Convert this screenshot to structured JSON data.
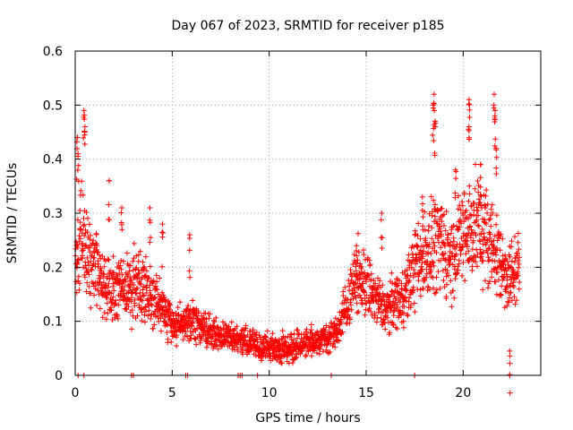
{
  "chart_data": {
    "type": "scatter",
    "title": "Day 067 of 2023, SRMTID for receiver p185",
    "xlabel": "GPS time / hours",
    "ylabel": "SRMTID / TECUs",
    "xlim": [
      0,
      24
    ],
    "ylim": [
      0,
      0.6
    ],
    "xticks": [
      0,
      5,
      10,
      15,
      20
    ],
    "xtick_labels": [
      "0",
      "5",
      "10",
      "15",
      "20"
    ],
    "yticks": [
      0,
      0.1,
      0.2,
      0.3,
      0.4,
      0.5,
      0.6
    ],
    "ytick_labels": [
      "0",
      "0.1",
      "0.2",
      "0.3",
      "0.4",
      "0.5",
      "0.6"
    ],
    "grid": true,
    "marker": "+",
    "color": "#ff0000",
    "series": [
      {
        "name": "SRMTID",
        "trend": [
          [
            0.0,
            0.2
          ],
          [
            0.3,
            0.27
          ],
          [
            0.6,
            0.22
          ],
          [
            1.0,
            0.2
          ],
          [
            1.5,
            0.17
          ],
          [
            2.0,
            0.15
          ],
          [
            2.5,
            0.16
          ],
          [
            3.0,
            0.17
          ],
          [
            3.5,
            0.16
          ],
          [
            4.0,
            0.15
          ],
          [
            4.5,
            0.12
          ],
          [
            5.0,
            0.1
          ],
          [
            5.5,
            0.09
          ],
          [
            6.0,
            0.1
          ],
          [
            6.5,
            0.09
          ],
          [
            7.0,
            0.08
          ],
          [
            7.5,
            0.075
          ],
          [
            8.0,
            0.07
          ],
          [
            8.5,
            0.065
          ],
          [
            9.0,
            0.06
          ],
          [
            9.5,
            0.055
          ],
          [
            10.0,
            0.05
          ],
          [
            10.5,
            0.05
          ],
          [
            11.0,
            0.05
          ],
          [
            11.5,
            0.055
          ],
          [
            12.0,
            0.06
          ],
          [
            12.5,
            0.065
          ],
          [
            13.0,
            0.07
          ],
          [
            13.5,
            0.08
          ],
          [
            14.0,
            0.13
          ],
          [
            14.5,
            0.18
          ],
          [
            15.0,
            0.17
          ],
          [
            15.5,
            0.14
          ],
          [
            16.0,
            0.12
          ],
          [
            16.5,
            0.14
          ],
          [
            17.0,
            0.15
          ],
          [
            17.5,
            0.2
          ],
          [
            18.0,
            0.22
          ],
          [
            18.5,
            0.25
          ],
          [
            19.0,
            0.23
          ],
          [
            19.5,
            0.22
          ],
          [
            20.0,
            0.26
          ],
          [
            20.5,
            0.28
          ],
          [
            21.0,
            0.27
          ],
          [
            21.5,
            0.24
          ],
          [
            22.0,
            0.2
          ],
          [
            22.5,
            0.18
          ],
          [
            22.9,
            0.2
          ]
        ],
        "peaks": [
          [
            0.1,
            0.44
          ],
          [
            0.15,
            0.41
          ],
          [
            0.45,
            0.49
          ],
          [
            0.5,
            0.46
          ],
          [
            1.75,
            0.36
          ],
          [
            2.4,
            0.31
          ],
          [
            3.85,
            0.31
          ],
          [
            4.5,
            0.28
          ],
          [
            5.9,
            0.26
          ],
          [
            14.5,
            0.24
          ],
          [
            15.8,
            0.3
          ],
          [
            17.9,
            0.33
          ],
          [
            18.5,
            0.52
          ],
          [
            18.45,
            0.5
          ],
          [
            18.55,
            0.47
          ],
          [
            19.6,
            0.38
          ],
          [
            20.3,
            0.51
          ],
          [
            20.3,
            0.46
          ],
          [
            20.9,
            0.39
          ],
          [
            21.6,
            0.52
          ],
          [
            21.65,
            0.49
          ],
          [
            21.7,
            0.42
          ],
          [
            22.4,
            0.045
          ]
        ],
        "zero_points": [
          0.15,
          0.45,
          2.9,
          3.0,
          5.7,
          5.8,
          8.4,
          8.5,
          8.6,
          9.4,
          13.2,
          17.5,
          22.4
        ]
      }
    ]
  }
}
